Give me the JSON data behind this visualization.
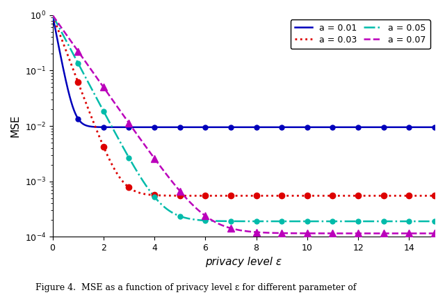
{
  "title": "",
  "xlabel": "privacy level ε",
  "ylabel": "MSE",
  "xlim": [
    0,
    15
  ],
  "ylim": [
    0.0001,
    1.0
  ],
  "floors": {
    "0.01": 0.0095,
    "0.03": 0.00055,
    "0.05": 0.00019,
    "0.07": 0.000115
  },
  "decays": {
    "0.01": 5.5,
    "0.03": 2.8,
    "0.05": 2.0,
    "0.07": 1.5
  },
  "series": [
    {
      "label": "a = 0.01",
      "color": "#0000bb",
      "linestyle": "-",
      "marker": "o",
      "markersize": 5,
      "linewidth": 1.8,
      "a": "0.01"
    },
    {
      "label": "a = 0.03",
      "color": "#dd0000",
      "linestyle": ":",
      "marker": "o",
      "markersize": 6,
      "linewidth": 2.0,
      "a": "0.03"
    },
    {
      "label": "a = 0.05",
      "color": "#00bbaa",
      "linestyle": "-.",
      "marker": "o",
      "markersize": 5,
      "linewidth": 1.8,
      "a": "0.05"
    },
    {
      "label": "a = 0.07",
      "color": "#bb00bb",
      "linestyle": "--",
      "marker": "^",
      "markersize": 7,
      "linewidth": 1.8,
      "a": "0.07"
    }
  ],
  "legend_fontsize": 9,
  "axis_fontsize": 11,
  "tick_fontsize": 9,
  "xticks": [
    0,
    2,
    4,
    6,
    8,
    10,
    12,
    14
  ],
  "marker_eps": [
    1,
    2,
    3,
    4,
    5,
    6,
    7,
    8,
    9,
    10,
    11,
    12,
    13,
    14,
    15
  ],
  "figure_caption": "Figure 4.  MSE as a function of privacy level ε for different parameter of"
}
